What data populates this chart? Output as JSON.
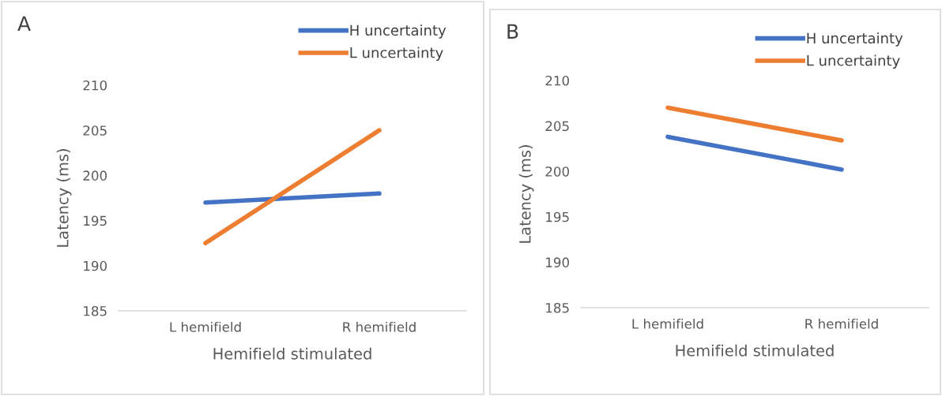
{
  "chart_data": [
    {
      "type": "line",
      "title": "A",
      "xlabel": "Hemifield stimulated",
      "ylabel": "Latency (ms)",
      "categories": [
        "L hemifield",
        "R hemifield"
      ],
      "series": [
        {
          "name": "H uncertainty",
          "color": "#4472c4",
          "values": [
            197,
            198
          ]
        },
        {
          "name": "L uncertainty",
          "color": "#ed7d31",
          "values": [
            192.5,
            205
          ]
        }
      ],
      "ylim": [
        185,
        210
      ],
      "yticks": [
        185,
        190,
        195,
        200,
        205,
        210
      ],
      "grid": false,
      "legend": "top right",
      "marker": "none",
      "line_style": "solid"
    },
    {
      "type": "line",
      "title": "B",
      "xlabel": "Hemifield stimulated",
      "ylabel": "Latency (ms)",
      "categories": [
        "L hemifield",
        "R hemifield"
      ],
      "series": [
        {
          "name": "H uncertainty",
          "color": "#4472c4",
          "values": [
            203.8,
            200.2
          ]
        },
        {
          "name": "L uncertainty",
          "color": "#ed7d31",
          "values": [
            207,
            203.4
          ]
        }
      ],
      "ylim": [
        185,
        210
      ],
      "yticks": [
        185,
        190,
        195,
        200,
        205,
        210
      ],
      "grid": false,
      "legend": "top right",
      "marker": "none",
      "line_style": "solid"
    }
  ]
}
